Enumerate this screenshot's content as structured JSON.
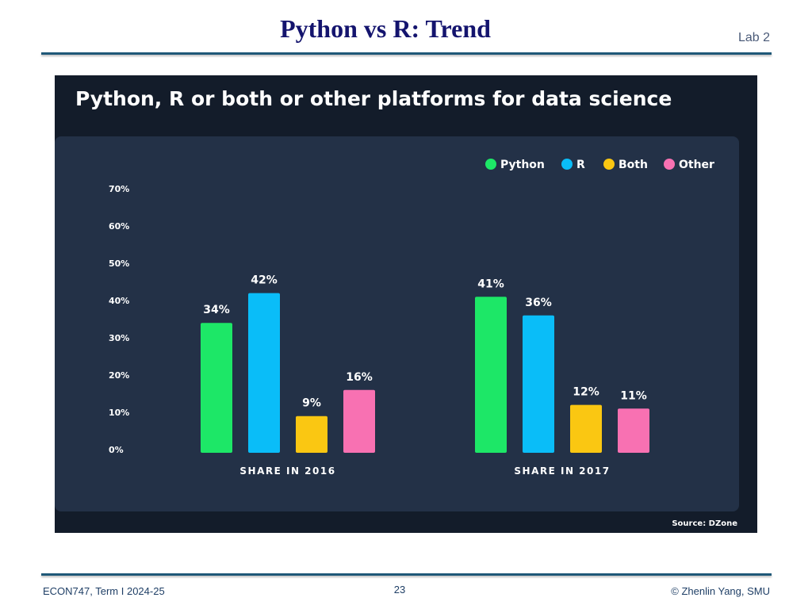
{
  "slide": {
    "title": "Python vs R: Trend",
    "lab_tag": "Lab 2",
    "footer_left": "ECON747, Term I  2024-25",
    "page_number": "23",
    "footer_right": "© Zhenlin Yang, SMU"
  },
  "colors": {
    "title": "#14146e",
    "rule": "#1f5878",
    "chart_outer_bg": "#131c2a",
    "chart_panel_bg": "#233147",
    "python": "#1de767",
    "r": "#0abdf8",
    "both": "#fac712",
    "other": "#f871b2"
  },
  "chart_data": {
    "type": "bar",
    "title": "Python, R or both or other platforms for data science",
    "categories": [
      "SHARE IN 2016",
      "SHARE IN 2017"
    ],
    "series": [
      {
        "name": "Python",
        "values": [
          34,
          41
        ],
        "labels": [
          "34%",
          "41%"
        ],
        "color": "#1de767"
      },
      {
        "name": "R",
        "values": [
          42,
          36
        ],
        "labels": [
          "42%",
          "36%"
        ],
        "color": "#0abdf8"
      },
      {
        "name": "Both",
        "values": [
          9,
          12
        ],
        "labels": [
          "9%",
          "12%"
        ],
        "color": "#fac712"
      },
      {
        "name": "Other",
        "values": [
          16,
          11
        ],
        "labels": [
          "16%",
          "11%"
        ],
        "color": "#f871b2"
      }
    ],
    "ylim": [
      0,
      70
    ],
    "yticks": [
      "0%",
      "10%",
      "20%",
      "30%",
      "40%",
      "50%",
      "60%",
      "70%"
    ],
    "grid": false,
    "legend_position": "top-right",
    "source": "Source: DZone"
  }
}
